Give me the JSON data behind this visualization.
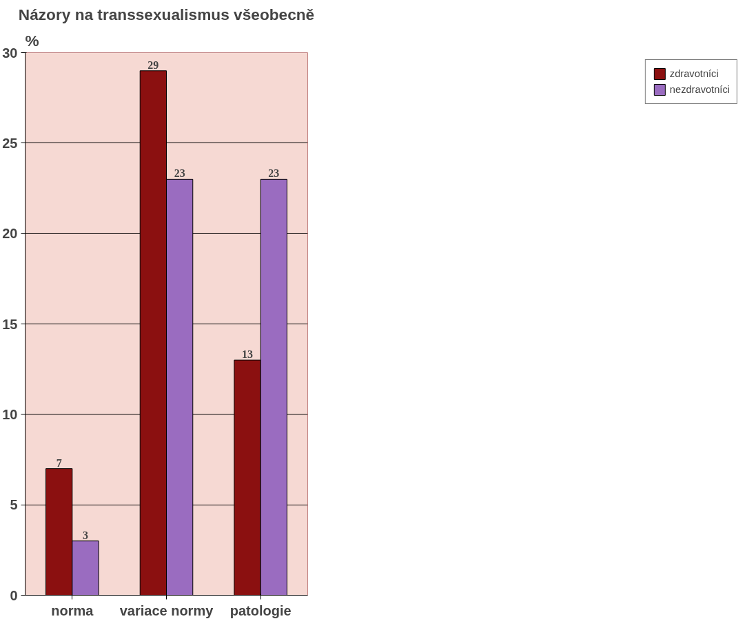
{
  "chart_data": {
    "type": "bar",
    "title": "Názory na transsexualismus všeobecně",
    "ylabel": "%",
    "categories": [
      "norma",
      "variace normy",
      "patologie"
    ],
    "series": [
      {
        "name": "zdravotníci",
        "color": "#8b1010",
        "values": [
          7,
          29,
          13
        ]
      },
      {
        "name": "nezdravotníci",
        "color": "#9a6cc0",
        "values": [
          3,
          23,
          23
        ]
      }
    ],
    "ylim": [
      0,
      30
    ],
    "yticks": [
      0,
      5,
      10,
      15,
      20,
      25,
      30
    ],
    "grid": "y",
    "legend": "right",
    "data_labels": true
  }
}
